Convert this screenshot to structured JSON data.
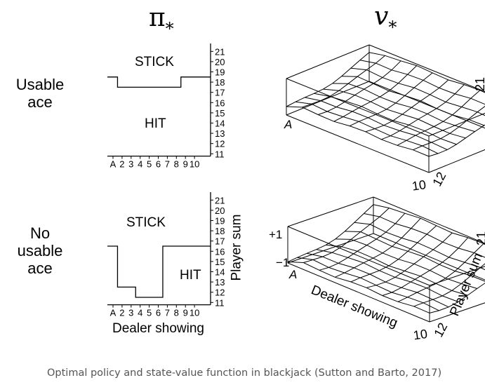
{
  "headers": {
    "policy_symbol": "π",
    "value_symbol": "v",
    "subscript": "*"
  },
  "rows": {
    "usable_label_1": "Usable",
    "usable_label_2": "ace",
    "no_usable_label_1": "No",
    "no_usable_label_2": "usable",
    "no_usable_label_3": "ace"
  },
  "policy": {
    "stick_label": "STICK",
    "hit_label": "HIT",
    "dealer_ticks": [
      "A",
      "2",
      "3",
      "4",
      "5",
      "6",
      "7",
      "8",
      "9",
      "10"
    ],
    "player_ticks": [
      "21",
      "20",
      "19",
      "18",
      "17",
      "16",
      "15",
      "14",
      "13",
      "12",
      "11"
    ],
    "xlabel": "Dealer showing",
    "ylabel": "Player sum",
    "usable_ace_boundary": [
      19,
      18,
      18,
      18,
      18,
      18,
      18,
      18,
      19,
      19
    ],
    "no_usable_ace_boundary": [
      17,
      13,
      13,
      12,
      12,
      12,
      17,
      17,
      17,
      17
    ]
  },
  "surface": {
    "a_label": "A",
    "ten_label": "10",
    "twelve_label": "12",
    "twentyone_label": "21",
    "plus_one_label": "+1",
    "minus_one_label": "−1",
    "dealer_label": "Dealer showing",
    "player_label": "Player sum"
  },
  "caption": "Optimal policy and state-value function in blackjack (Sutton and Barto, 2017)",
  "colors": {
    "line": "#000000",
    "caption": "#555555"
  }
}
